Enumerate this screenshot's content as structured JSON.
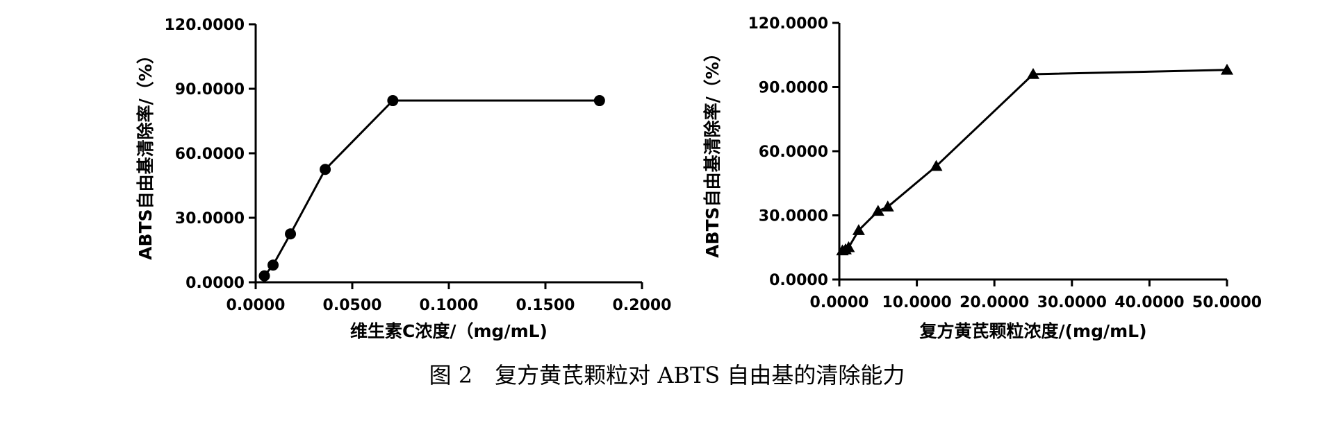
{
  "caption": "图 2　复方黄芪颗粒对 ABTS 自由基的清除能力",
  "chart_data": [
    {
      "type": "line",
      "marker": "circle",
      "title": "",
      "xlabel": "维生素C浓度/（mg/mL)",
      "ylabel": "ABTS自由基清除率/（%）",
      "xlim": [
        0,
        0.2
      ],
      "ylim": [
        0,
        120
      ],
      "x_ticks": [
        "0.0000",
        "0.0500",
        "0.1000",
        "0.1500",
        "0.2000"
      ],
      "y_ticks": [
        "0.0000",
        "30.0000",
        "60.0000",
        "90.0000",
        "120.0000"
      ],
      "grid": false,
      "x": [
        0.0045,
        0.009,
        0.018,
        0.036,
        0.071,
        0.178
      ],
      "y": [
        3.0,
        8.0,
        22.5,
        52.5,
        84.5,
        84.5
      ]
    },
    {
      "type": "line",
      "marker": "triangle",
      "title": "",
      "xlabel": "复方黄芪颗粒浓度/(mg/mL)",
      "ylabel": "ABTS自由基清除率/（%）",
      "xlim": [
        0,
        50
      ],
      "ylim": [
        0,
        120
      ],
      "x_ticks": [
        "0.0000",
        "10.0000",
        "20.0000",
        "30.0000",
        "40.0000",
        "50.0000"
      ],
      "y_ticks": [
        "0.0000",
        "30.0000",
        "60.0000",
        "90.0000",
        "120.0000"
      ],
      "grid": false,
      "x": [
        0.4,
        0.8,
        1.2,
        2.5,
        5.0,
        6.25,
        12.5,
        25.0,
        50.0
      ],
      "y": [
        13.5,
        14.0,
        15.0,
        23.0,
        32.0,
        34.0,
        53.0,
        96.0,
        98.0
      ]
    }
  ]
}
